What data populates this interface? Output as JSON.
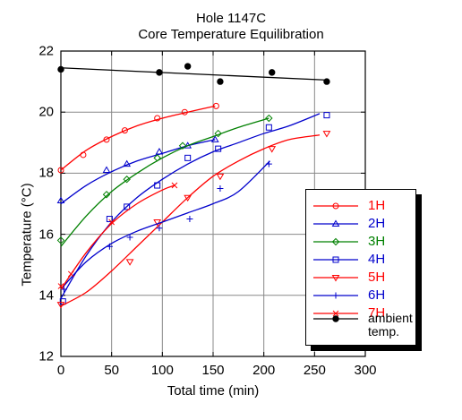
{
  "chart_data": {
    "type": "line",
    "title": "Hole 1147C",
    "subtitle": "Core Temperature Equilibration",
    "xlabel": "Total time (min)",
    "ylabel": "Temperature (°C)",
    "xlim": [
      0,
      300
    ],
    "ylim": [
      12,
      22
    ],
    "xticks": [
      "0",
      "50",
      "100",
      "150",
      "200",
      "250",
      "300"
    ],
    "yticks": [
      "12",
      "14",
      "16",
      "18",
      "20",
      "22"
    ],
    "grid": true,
    "legend_position": "right",
    "series": [
      {
        "name": "1H",
        "color": "#ff0000",
        "marker": "circle",
        "points": [
          [
            0,
            18.1
          ],
          [
            22,
            18.6
          ],
          [
            45,
            19.1
          ],
          [
            63,
            19.4
          ],
          [
            95,
            19.8
          ],
          [
            122,
            20.0
          ],
          [
            153,
            20.2
          ]
        ],
        "fit": [
          [
            0,
            18.1
          ],
          [
            25,
            18.75
          ],
          [
            50,
            19.2
          ],
          [
            75,
            19.55
          ],
          [
            100,
            19.8
          ],
          [
            125,
            20.0
          ],
          [
            152,
            20.2
          ]
        ]
      },
      {
        "name": "2H",
        "color": "#0000cc",
        "marker": "triangle",
        "points": [
          [
            0,
            17.1
          ],
          [
            45,
            18.1
          ],
          [
            65,
            18.3
          ],
          [
            97,
            18.7
          ],
          [
            125,
            18.9
          ],
          [
            152,
            19.1
          ]
        ],
        "fit": [
          [
            0,
            17.0
          ],
          [
            25,
            17.6
          ],
          [
            50,
            18.05
          ],
          [
            75,
            18.4
          ],
          [
            100,
            18.65
          ],
          [
            125,
            18.9
          ],
          [
            152,
            19.1
          ]
        ]
      },
      {
        "name": "3H",
        "color": "#008000",
        "marker": "diamond",
        "points": [
          [
            0,
            15.8
          ],
          [
            45,
            17.3
          ],
          [
            65,
            17.8
          ],
          [
            95,
            18.5
          ],
          [
            120,
            18.9
          ],
          [
            155,
            19.3
          ],
          [
            205,
            19.8
          ]
        ],
        "fit": [
          [
            0,
            15.6
          ],
          [
            25,
            16.6
          ],
          [
            50,
            17.4
          ],
          [
            75,
            18.0
          ],
          [
            100,
            18.5
          ],
          [
            125,
            18.9
          ],
          [
            150,
            19.2
          ],
          [
            175,
            19.5
          ],
          [
            205,
            19.8
          ]
        ]
      },
      {
        "name": "4H",
        "color": "#0000cc",
        "marker": "square",
        "points": [
          [
            2,
            13.8
          ],
          [
            48,
            16.5
          ],
          [
            65,
            16.9
          ],
          [
            95,
            17.6
          ],
          [
            125,
            18.5
          ],
          [
            155,
            18.8
          ],
          [
            205,
            19.5
          ],
          [
            262,
            19.9
          ]
        ],
        "fit": [
          [
            0,
            13.9
          ],
          [
            25,
            15.3
          ],
          [
            50,
            16.4
          ],
          [
            75,
            17.2
          ],
          [
            100,
            17.8
          ],
          [
            125,
            18.3
          ],
          [
            150,
            18.7
          ],
          [
            175,
            19.0
          ],
          [
            200,
            19.3
          ],
          [
            225,
            19.55
          ],
          [
            255,
            19.95
          ]
        ]
      },
      {
        "name": "5H",
        "color": "#ff0000",
        "marker": "triangle-down",
        "points": [
          [
            0,
            13.7
          ],
          [
            68,
            15.1
          ],
          [
            95,
            16.4
          ],
          [
            125,
            17.2
          ],
          [
            157,
            17.9
          ],
          [
            208,
            18.8
          ],
          [
            262,
            19.3
          ]
        ],
        "fit": [
          [
            0,
            13.65
          ],
          [
            25,
            14.1
          ],
          [
            50,
            14.8
          ],
          [
            75,
            15.6
          ],
          [
            100,
            16.4
          ],
          [
            125,
            17.2
          ],
          [
            150,
            17.9
          ],
          [
            175,
            18.4
          ],
          [
            200,
            18.8
          ],
          [
            225,
            19.1
          ],
          [
            255,
            19.25
          ]
        ]
      },
      {
        "name": "6H",
        "color": "#0000cc",
        "marker": "plus",
        "points": [
          [
            3,
            14.2
          ],
          [
            48,
            15.6
          ],
          [
            68,
            15.9
          ],
          [
            97,
            16.2
          ],
          [
            127,
            16.5
          ],
          [
            157,
            17.5
          ],
          [
            205,
            18.3
          ]
        ],
        "fit": [
          [
            0,
            14.2
          ],
          [
            25,
            15.1
          ],
          [
            50,
            15.7
          ],
          [
            75,
            16.1
          ],
          [
            100,
            16.4
          ],
          [
            125,
            16.7
          ],
          [
            150,
            17.0
          ],
          [
            175,
            17.4
          ],
          [
            206,
            18.4
          ]
        ]
      },
      {
        "name": "7H",
        "color": "#ff0000",
        "marker": "x",
        "points": [
          [
            0,
            14.3
          ],
          [
            10,
            14.7
          ],
          [
            50,
            16.4
          ],
          [
            112,
            17.6
          ]
        ],
        "fit": [
          [
            0,
            14.2
          ],
          [
            25,
            15.4
          ],
          [
            50,
            16.35
          ],
          [
            75,
            17.0
          ],
          [
            100,
            17.45
          ],
          [
            112,
            17.6
          ]
        ]
      },
      {
        "name": "ambient\ntemp.",
        "color": "#000000",
        "marker": "dot",
        "points": [
          [
            0,
            21.4
          ],
          [
            97,
            21.3
          ],
          [
            125,
            21.5
          ],
          [
            157,
            21.0
          ],
          [
            208,
            21.3
          ],
          [
            262,
            21.0
          ]
        ],
        "fit": [
          [
            0,
            21.45
          ],
          [
            262,
            21.05
          ]
        ]
      }
    ]
  }
}
